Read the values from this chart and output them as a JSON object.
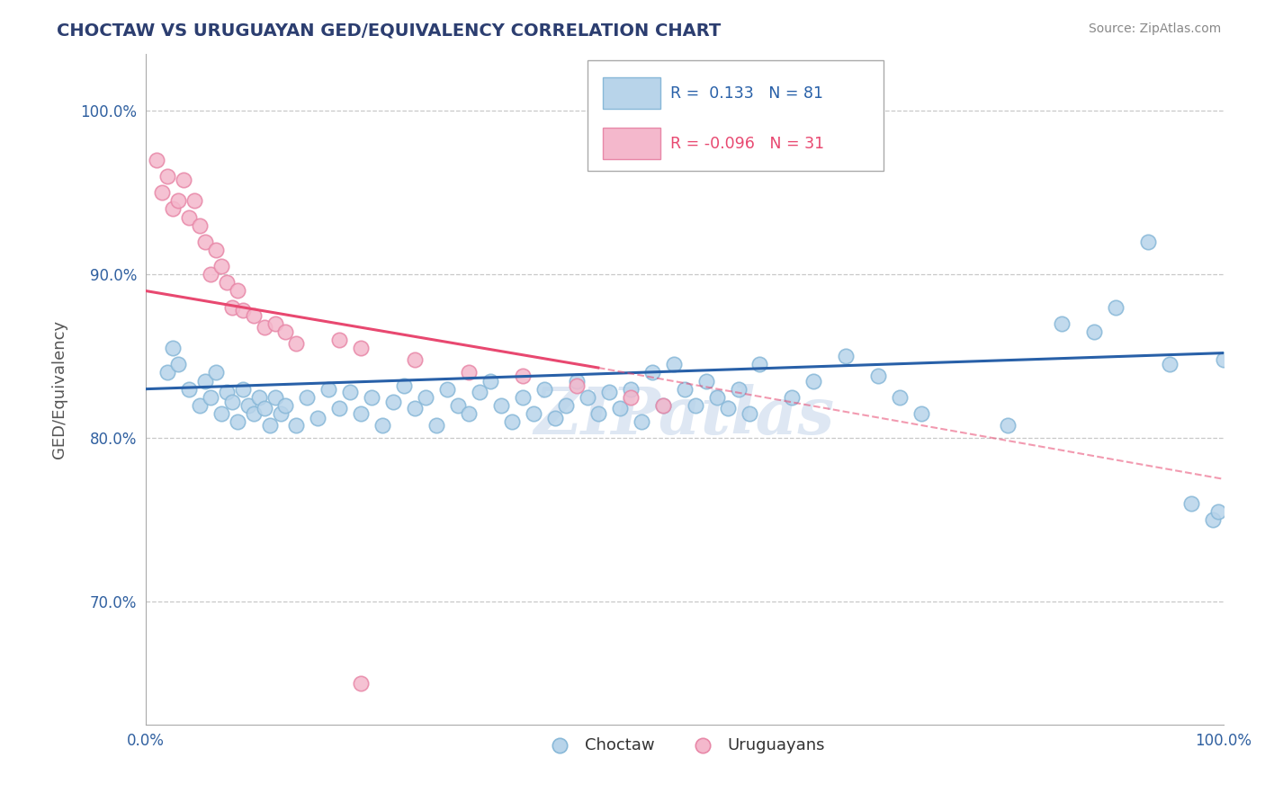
{
  "title": "CHOCTAW VS URUGUAYAN GED/EQUIVALENCY CORRELATION CHART",
  "source": "Source: ZipAtlas.com",
  "ylabel": "GED/Equivalency",
  "xlim": [
    0.0,
    1.0
  ],
  "ylim": [
    0.625,
    1.035
  ],
  "yticks": [
    0.7,
    0.8,
    0.9,
    1.0
  ],
  "ytick_labels": [
    "70.0%",
    "80.0%",
    "90.0%",
    "100.0%"
  ],
  "xticks": [
    0.0,
    1.0
  ],
  "xtick_labels": [
    "0.0%",
    "100.0%"
  ],
  "choctaw_color": "#b8d4ea",
  "uruguayan_color": "#f4b8cc",
  "choctaw_edge": "#88b8d8",
  "uruguayan_edge": "#e888a8",
  "blue_line_color": "#2860a8",
  "pink_line_color": "#e84870",
  "legend_blue_R": "0.133",
  "legend_blue_N": "81",
  "legend_pink_R": "-0.096",
  "legend_pink_N": "31",
  "legend_label_choctaw": "Choctaw",
  "legend_label_uruguayan": "Uruguayans",
  "background_color": "#ffffff",
  "grid_color": "#c8c8c8",
  "watermark": "ZIPatlas",
  "blue_line_x0": 0.0,
  "blue_line_y0": 0.83,
  "blue_line_x1": 1.0,
  "blue_line_y1": 0.852,
  "pink_line_solid_x0": 0.0,
  "pink_line_solid_y0": 0.89,
  "pink_line_solid_x1": 0.42,
  "pink_line_solid_y1": 0.843,
  "pink_line_dash_x0": 0.42,
  "pink_line_dash_y0": 0.843,
  "pink_line_dash_x1": 1.0,
  "pink_line_dash_y1": 0.775,
  "choctaw_x": [
    0.02,
    0.025,
    0.03,
    0.04,
    0.05,
    0.055,
    0.06,
    0.065,
    0.07,
    0.075,
    0.08,
    0.085,
    0.09,
    0.095,
    0.1,
    0.105,
    0.11,
    0.115,
    0.12,
    0.125,
    0.13,
    0.14,
    0.15,
    0.16,
    0.17,
    0.18,
    0.19,
    0.2,
    0.21,
    0.22,
    0.23,
    0.24,
    0.25,
    0.26,
    0.27,
    0.28,
    0.29,
    0.3,
    0.31,
    0.32,
    0.33,
    0.34,
    0.35,
    0.36,
    0.37,
    0.38,
    0.39,
    0.4,
    0.41,
    0.42,
    0.43,
    0.44,
    0.45,
    0.46,
    0.47,
    0.48,
    0.49,
    0.5,
    0.51,
    0.52,
    0.53,
    0.54,
    0.55,
    0.56,
    0.57,
    0.6,
    0.62,
    0.65,
    0.68,
    0.7,
    0.72,
    0.8,
    0.85,
    0.88,
    0.9,
    0.93,
    0.95,
    0.97,
    0.99,
    0.995,
    1.0
  ],
  "choctaw_y": [
    0.84,
    0.855,
    0.845,
    0.83,
    0.82,
    0.835,
    0.825,
    0.84,
    0.815,
    0.828,
    0.822,
    0.81,
    0.83,
    0.82,
    0.815,
    0.825,
    0.818,
    0.808,
    0.825,
    0.815,
    0.82,
    0.808,
    0.825,
    0.812,
    0.83,
    0.818,
    0.828,
    0.815,
    0.825,
    0.808,
    0.822,
    0.832,
    0.818,
    0.825,
    0.808,
    0.83,
    0.82,
    0.815,
    0.828,
    0.835,
    0.82,
    0.81,
    0.825,
    0.815,
    0.83,
    0.812,
    0.82,
    0.835,
    0.825,
    0.815,
    0.828,
    0.818,
    0.83,
    0.81,
    0.84,
    0.82,
    0.845,
    0.83,
    0.82,
    0.835,
    0.825,
    0.818,
    0.83,
    0.815,
    0.845,
    0.825,
    0.835,
    0.85,
    0.838,
    0.825,
    0.815,
    0.808,
    0.87,
    0.865,
    0.88,
    0.92,
    0.845,
    0.76,
    0.75,
    0.755,
    0.848
  ],
  "uruguayan_x": [
    0.01,
    0.015,
    0.02,
    0.025,
    0.03,
    0.035,
    0.04,
    0.045,
    0.05,
    0.055,
    0.06,
    0.065,
    0.07,
    0.075,
    0.08,
    0.085,
    0.09,
    0.1,
    0.11,
    0.12,
    0.13,
    0.14,
    0.18,
    0.2,
    0.25,
    0.3,
    0.35,
    0.4,
    0.45,
    0.48,
    0.2
  ],
  "uruguayan_y": [
    0.97,
    0.95,
    0.96,
    0.94,
    0.945,
    0.958,
    0.935,
    0.945,
    0.93,
    0.92,
    0.9,
    0.915,
    0.905,
    0.895,
    0.88,
    0.89,
    0.878,
    0.875,
    0.868,
    0.87,
    0.865,
    0.858,
    0.86,
    0.855,
    0.848,
    0.84,
    0.838,
    0.832,
    0.825,
    0.82,
    0.65
  ]
}
